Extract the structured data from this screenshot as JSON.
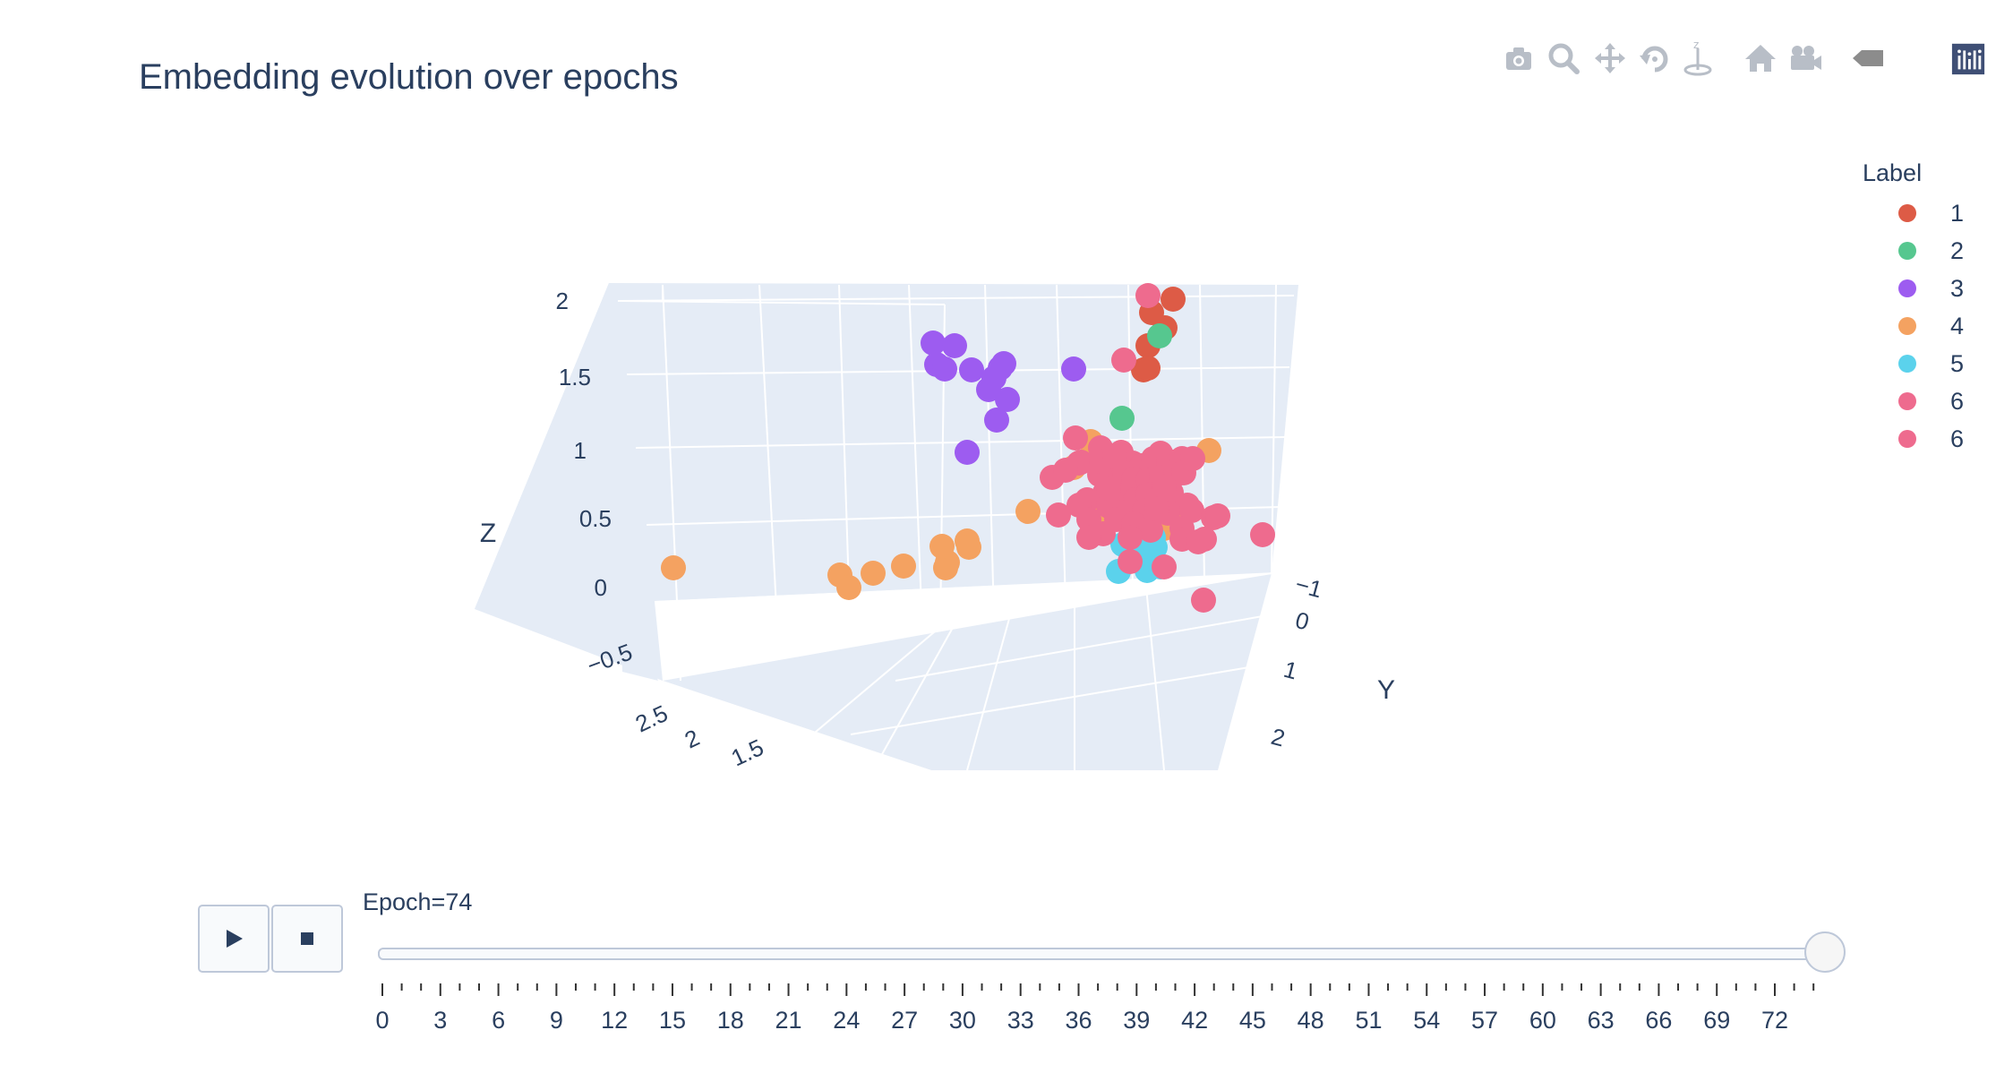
{
  "title": "Embedding evolution over epochs",
  "modebar": {
    "buttons": [
      "camera-icon",
      "zoom-icon",
      "pan-icon",
      "orbit-icon",
      "turntable-icon",
      "home-icon",
      "camera-view-icon",
      "hover-icon",
      "plotly-logo-icon"
    ]
  },
  "legend": {
    "title": "Label",
    "items": [
      {
        "label": "1",
        "color": "#dd5b46"
      },
      {
        "label": "2",
        "color": "#56c78f"
      },
      {
        "label": "3",
        "color": "#9d5cf0"
      },
      {
        "label": "4",
        "color": "#f4a261"
      },
      {
        "label": "5",
        "color": "#5bd2ec"
      },
      {
        "label": "6",
        "color": "#ee6b8e"
      },
      {
        "label": "6",
        "color": "#ee6b8e"
      }
    ]
  },
  "chart_data": {
    "type": "scatter",
    "title": "Embedding evolution over epochs",
    "xlabel": "",
    "ylabel": "Y",
    "zlabel": "Z",
    "z_ticks": [
      "2",
      "1.5",
      "1",
      "0.5",
      "0",
      "−0.5"
    ],
    "y_ticks": [
      "−1",
      "0",
      "1",
      "2"
    ],
    "x_ticks": [
      "2.5",
      "2",
      "1.5"
    ],
    "series": [
      {
        "name": "1",
        "color": "#dd5b46",
        "points": [
          [
            1310,
            334
          ],
          [
            1286,
            349
          ],
          [
            1301,
            366
          ],
          [
            1282,
            386
          ],
          [
            1277,
            413
          ],
          [
            1282,
            411
          ]
        ]
      },
      {
        "name": "2",
        "color": "#56c78f",
        "points": [
          [
            1295,
            375
          ],
          [
            1253,
            467
          ]
        ]
      },
      {
        "name": "3",
        "color": "#9d5cf0",
        "points": [
          [
            1042,
            383
          ],
          [
            1066,
            386
          ],
          [
            1046,
            407
          ],
          [
            1055,
            412
          ],
          [
            1085,
            413
          ],
          [
            1117,
            411
          ],
          [
            1121,
            406
          ],
          [
            1110,
            422
          ],
          [
            1104,
            435
          ],
          [
            1125,
            446
          ],
          [
            1113,
            469
          ],
          [
            1080,
            505
          ],
          [
            1199,
            412
          ]
        ]
      },
      {
        "name": "4",
        "color": "#f4a261",
        "points": [
          [
            752,
            634
          ],
          [
            938,
            642
          ],
          [
            948,
            656
          ],
          [
            975,
            640
          ],
          [
            1009,
            632
          ],
          [
            1056,
            634
          ],
          [
            1058,
            628
          ],
          [
            1080,
            604
          ],
          [
            1082,
            611
          ],
          [
            1052,
            610
          ],
          [
            1148,
            571
          ],
          [
            1199,
            522
          ],
          [
            1218,
            493
          ],
          [
            1226,
            571
          ],
          [
            1350,
            503
          ],
          [
            1300,
            590
          ],
          [
            1308,
            580
          ],
          [
            1240,
            560
          ],
          [
            1265,
            542
          ]
        ]
      },
      {
        "name": "5",
        "color": "#5bd2ec",
        "points": [
          [
            1254,
            608
          ],
          [
            1270,
            606
          ],
          [
            1270,
            625
          ],
          [
            1249,
            638
          ],
          [
            1281,
            637
          ],
          [
            1290,
            611
          ],
          [
            1296,
            557
          ],
          [
            1288,
            600
          ],
          [
            1296,
            633
          ]
        ]
      },
      {
        "name": "6",
        "color": "#ee6b8e",
        "points": [
          [
            1282,
            330
          ],
          [
            1255,
            402
          ],
          [
            1201,
            489
          ],
          [
            1207,
            516
          ],
          [
            1229,
            500
          ],
          [
            1242,
            520
          ],
          [
            1252,
            505
          ],
          [
            1265,
            517
          ],
          [
            1275,
            520
          ],
          [
            1288,
            512
          ],
          [
            1296,
            506
          ],
          [
            1305,
            515
          ],
          [
            1320,
            512
          ],
          [
            1228,
            530
          ],
          [
            1246,
            540
          ],
          [
            1256,
            528
          ],
          [
            1266,
            535
          ],
          [
            1282,
            536
          ],
          [
            1297,
            533
          ],
          [
            1313,
            530
          ],
          [
            1322,
            528
          ],
          [
            1234,
            550
          ],
          [
            1252,
            553
          ],
          [
            1268,
            558
          ],
          [
            1282,
            552
          ],
          [
            1308,
            550
          ],
          [
            1326,
            564
          ],
          [
            1214,
            558
          ],
          [
            1238,
            565
          ],
          [
            1255,
            572
          ],
          [
            1278,
            570
          ],
          [
            1304,
            573
          ],
          [
            1331,
            570
          ],
          [
            1205,
            564
          ],
          [
            1247,
            580
          ],
          [
            1266,
            585
          ],
          [
            1285,
            592
          ],
          [
            1320,
            590
          ],
          [
            1355,
            578
          ],
          [
            1182,
            575
          ],
          [
            1216,
            580
          ],
          [
            1232,
            596
          ],
          [
            1262,
            600
          ],
          [
            1320,
            602
          ],
          [
            1345,
            602
          ],
          [
            1360,
            576
          ],
          [
            1216,
            600
          ],
          [
            1338,
            605
          ],
          [
            1410,
            597
          ],
          [
            1300,
            633
          ],
          [
            1344,
            670
          ],
          [
            1262,
            627
          ],
          [
            1175,
            533
          ],
          [
            1205,
            517
          ],
          [
            1190,
            525
          ],
          [
            1230,
            515
          ],
          [
            1245,
            510
          ],
          [
            1238,
            545
          ],
          [
            1300,
            543
          ],
          [
            1292,
            568
          ],
          [
            1332,
            512
          ]
        ]
      }
    ]
  },
  "animation": {
    "current_value": "Epoch=74",
    "play_label": "play",
    "stop_label": "stop",
    "slider_position": 1.0,
    "tick_labels": [
      "0",
      "3",
      "6",
      "9",
      "12",
      "15",
      "18",
      "21",
      "24",
      "27",
      "30",
      "33",
      "36",
      "39",
      "42",
      "45",
      "48",
      "51",
      "54",
      "57",
      "60",
      "63",
      "66",
      "69",
      "72"
    ]
  }
}
